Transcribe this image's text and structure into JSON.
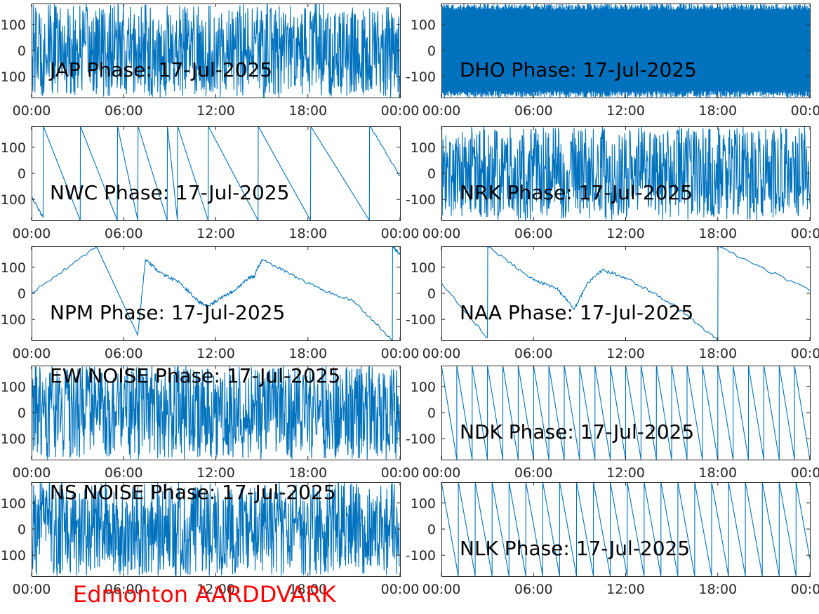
{
  "page": {
    "footer_text": "Edmonton AARDDVARK",
    "footer_color": "#ff0000"
  },
  "style": {
    "line_color": "#0072bd",
    "axis_color": "#262626",
    "background": "#ffffff"
  },
  "chart_data": [
    {
      "type": "line",
      "title": "JAP Phase: 17-Jul-2025",
      "xlabel": "",
      "ylabel": "",
      "xlim": [
        "00:00",
        "24:00"
      ],
      "ylim": [
        -180,
        180
      ],
      "xticks": [
        "00:00",
        "06:00",
        "12:00",
        "18:00",
        "00:00"
      ],
      "yticks": [
        "100",
        "0",
        "100"
      ],
      "grid": false,
      "legend": "none",
      "series": [
        {
          "behavior": "noise",
          "amplitude": 180,
          "x": [
            "00:00",
            "06:00",
            "12:00",
            "18:00",
            "24:00"
          ],
          "values": [
            0,
            0,
            0,
            0,
            0
          ]
        }
      ]
    },
    {
      "type": "line",
      "title": "DHO Phase: 17-Jul-2025",
      "xlabel": "",
      "ylabel": "",
      "xlim": [
        "00:00",
        "24:00"
      ],
      "ylim": [
        -180,
        180
      ],
      "xticks": [
        "00:00",
        "06:00",
        "12:00",
        "18:00",
        "00:00"
      ],
      "yticks": [
        "100",
        "0",
        "-100"
      ],
      "grid": false,
      "legend": "none",
      "series": [
        {
          "behavior": "dense-wrap",
          "amplitude": 180,
          "x": [
            "00:00",
            "06:00",
            "12:00",
            "18:00",
            "24:00"
          ],
          "values": [
            0,
            0,
            0,
            0,
            0
          ]
        }
      ]
    },
    {
      "type": "line",
      "title": "NWC Phase: 17-Jul-2025",
      "xlabel": "",
      "ylabel": "",
      "xlim": [
        "00:00",
        "24:00"
      ],
      "ylim": [
        -180,
        180
      ],
      "xticks": [
        "00:00",
        "06:00",
        "12:00",
        "18:00",
        "00:00"
      ],
      "yticks": [
        "100",
        "0",
        "100"
      ],
      "grid": false,
      "legend": "none",
      "series": [
        {
          "behavior": "wrapped",
          "x": [
            "00:00",
            "00:45",
            "00:46",
            "03:10",
            "03:11",
            "05:35",
            "05:36",
            "06:55",
            "06:56",
            "08:50",
            "08:51",
            "09:30",
            "09:31",
            "11:30",
            "11:31",
            "14:45",
            "14:46",
            "18:10",
            "18:11",
            "22:00",
            "22:01",
            "24:00"
          ],
          "values": [
            -90,
            -170,
            180,
            -180,
            180,
            -180,
            180,
            -180,
            180,
            -180,
            180,
            -180,
            180,
            -180,
            180,
            -180,
            180,
            -180,
            180,
            -180,
            180,
            -10
          ]
        }
      ]
    },
    {
      "type": "line",
      "title": "NRK Phase: 17-Jul-2025",
      "xlabel": "",
      "ylabel": "",
      "xlim": [
        "00:00",
        "24:00"
      ],
      "ylim": [
        -180,
        180
      ],
      "xticks": [
        "00:00",
        "06:00",
        "12:00",
        "18:00",
        "00:00"
      ],
      "yticks": [
        "100",
        "0",
        "-100"
      ],
      "grid": false,
      "legend": "none",
      "series": [
        {
          "behavior": "noise",
          "amplitude": 180,
          "x": [
            "00:00",
            "06:00",
            "12:00",
            "18:00",
            "24:00"
          ],
          "values": [
            0,
            0,
            0,
            0,
            0
          ]
        }
      ]
    },
    {
      "type": "line",
      "title": "NPM Phase: 17-Jul-2025",
      "xlabel": "",
      "ylabel": "",
      "xlim": [
        "00:00",
        "24:00"
      ],
      "ylim": [
        -180,
        180
      ],
      "xticks": [
        "00:00",
        "06:00",
        "12:00",
        "18:00",
        "00:00"
      ],
      "yticks": [
        "100",
        "0",
        "100"
      ],
      "grid": false,
      "legend": "none",
      "series": [
        {
          "behavior": "wrapped",
          "x": [
            "00:00",
            "04:15",
            "04:16",
            "06:55",
            "07:25",
            "08:20",
            "09:40",
            "10:50",
            "11:30",
            "12:30",
            "13:15",
            "14:10",
            "14:30",
            "15:00",
            "17:00",
            "19:00",
            "21:00",
            "23:30",
            "23:31",
            "24:00"
          ],
          "values": [
            0,
            180,
            175,
            -160,
            130,
            80,
            40,
            -30,
            -50,
            -10,
            10,
            60,
            65,
            130,
            70,
            10,
            -30,
            -180,
            180,
            150
          ]
        }
      ]
    },
    {
      "type": "line",
      "title": "NAA Phase: 17-Jul-2025",
      "xlabel": "",
      "ylabel": "",
      "xlim": [
        "00:00",
        "24:00"
      ],
      "ylim": [
        -180,
        180
      ],
      "xticks": [
        "00:00",
        "06:00",
        "12:00",
        "18:00",
        "00:00"
      ],
      "yticks": [
        "100",
        "0",
        "-100"
      ],
      "grid": false,
      "legend": "none",
      "series": [
        {
          "behavior": "wrapped",
          "x": [
            "00:00",
            "03:00",
            "03:01",
            "06:00",
            "07:30",
            "08:40",
            "09:30",
            "10:30",
            "12:00",
            "15:00",
            "18:00",
            "18:01",
            "24:00"
          ],
          "values": [
            40,
            -170,
            180,
            50,
            20,
            -60,
            40,
            90,
            60,
            -40,
            -180,
            180,
            10
          ]
        }
      ]
    },
    {
      "type": "line",
      "title": "EW NOISE Phase: 17-Jul-2025",
      "xlabel": "",
      "ylabel": "",
      "xlim": [
        "00:00",
        "24:00"
      ],
      "ylim": [
        -180,
        180
      ],
      "xticks": [
        "00:00",
        "06:00",
        "12:00",
        "18:00",
        "00:00"
      ],
      "yticks": [
        "100",
        "0",
        "100"
      ],
      "grid": false,
      "legend": "none",
      "series": [
        {
          "behavior": "noise",
          "amplitude": 180,
          "x": [
            "00:00",
            "06:00",
            "12:00",
            "18:00",
            "24:00"
          ],
          "values": [
            0,
            0,
            0,
            0,
            0
          ]
        }
      ]
    },
    {
      "type": "line",
      "title": "NDK Phase: 17-Jul-2025",
      "xlabel": "",
      "ylabel": "",
      "xlim": [
        "00:00",
        "24:00"
      ],
      "ylim": [
        -180,
        180
      ],
      "xticks": [
        "00:00",
        "06:00",
        "12:00",
        "18:00",
        "00:00"
      ],
      "yticks": [
        "100",
        "0",
        "-100"
      ],
      "grid": false,
      "legend": "none",
      "series": [
        {
          "behavior": "sawtooth",
          "period_hours": 1.0,
          "amplitude": 180,
          "x": [
            "00:00",
            "06:00",
            "12:00",
            "18:00",
            "24:00"
          ],
          "values": [
            0,
            0,
            0,
            0,
            0
          ]
        }
      ]
    },
    {
      "type": "line",
      "title": "NS NOISE Phase: 17-Jul-2025",
      "xlabel": "",
      "ylabel": "",
      "xlim": [
        "00:00",
        "24:00"
      ],
      "ylim": [
        -180,
        180
      ],
      "xticks": [
        "00:00",
        "06:00",
        "12:00",
        "18:00",
        "00:00"
      ],
      "yticks": [
        "100",
        "0",
        "100"
      ],
      "grid": false,
      "legend": "none",
      "series": [
        {
          "behavior": "noise",
          "amplitude": 180,
          "x": [
            "00:00",
            "06:00",
            "12:00",
            "18:00",
            "24:00"
          ],
          "values": [
            0,
            0,
            0,
            0,
            0
          ]
        }
      ]
    },
    {
      "type": "line",
      "title": "NLK Phase: 17-Jul-2025",
      "xlabel": "",
      "ylabel": "",
      "xlim": [
        "00:00",
        "24:00"
      ],
      "ylim": [
        -180,
        180
      ],
      "xticks": [
        "00:00",
        "06:00",
        "12:00",
        "18:00",
        "00:00"
      ],
      "yticks": [
        "100",
        "0",
        "-100"
      ],
      "grid": false,
      "legend": "none",
      "series": [
        {
          "behavior": "sawtooth",
          "period_hours": 1.1,
          "amplitude": 180,
          "x": [
            "00:00",
            "06:00",
            "12:00",
            "18:00",
            "24:00"
          ],
          "values": [
            0,
            0,
            0,
            0,
            0
          ]
        }
      ]
    }
  ]
}
